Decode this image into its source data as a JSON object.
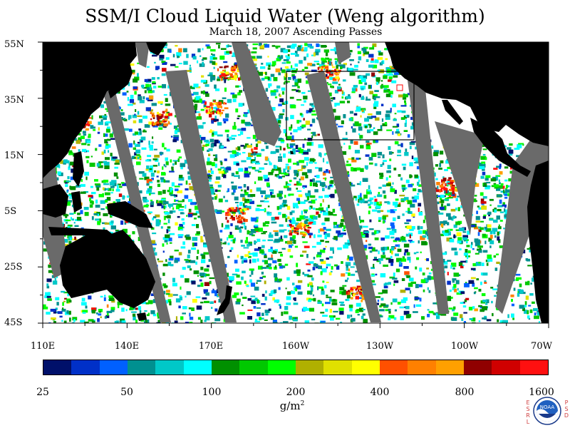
{
  "title": "SSM/I Cloud Liquid Water (Weng algorithm)",
  "subtitle": "March 18, 2007  Ascending Passes",
  "map": {
    "type": "satellite-swath-map",
    "lat_labels": [
      "55N",
      "35N",
      "15N",
      "5S",
      "25S",
      "45S"
    ],
    "lon_labels": [
      "110E",
      "140E",
      "170E",
      "160W",
      "130W",
      "100W",
      "70W"
    ],
    "land_color": "#000000",
    "no_data_color": "#6a6a6a",
    "background_color": "#ffffff"
  },
  "colorbar": {
    "labels": [
      "25",
      "50",
      "100",
      "200",
      "400",
      "800",
      "1600"
    ],
    "units": "g/m",
    "units_exp": "2",
    "colors": [
      "#00106a",
      "#0030c8",
      "#0060ff",
      "#009090",
      "#00c8c8",
      "#00ffff",
      "#009000",
      "#00c800",
      "#00ff00",
      "#b0b000",
      "#e0e000",
      "#ffff00",
      "#ff5000",
      "#ff8000",
      "#ffa000",
      "#900000",
      "#d00000",
      "#ff1010"
    ]
  },
  "logo": {
    "text": "NOAA",
    "left_letters": [
      "E",
      "S",
      "R",
      "L"
    ],
    "right_letters": [
      "P",
      "S",
      "D"
    ]
  }
}
